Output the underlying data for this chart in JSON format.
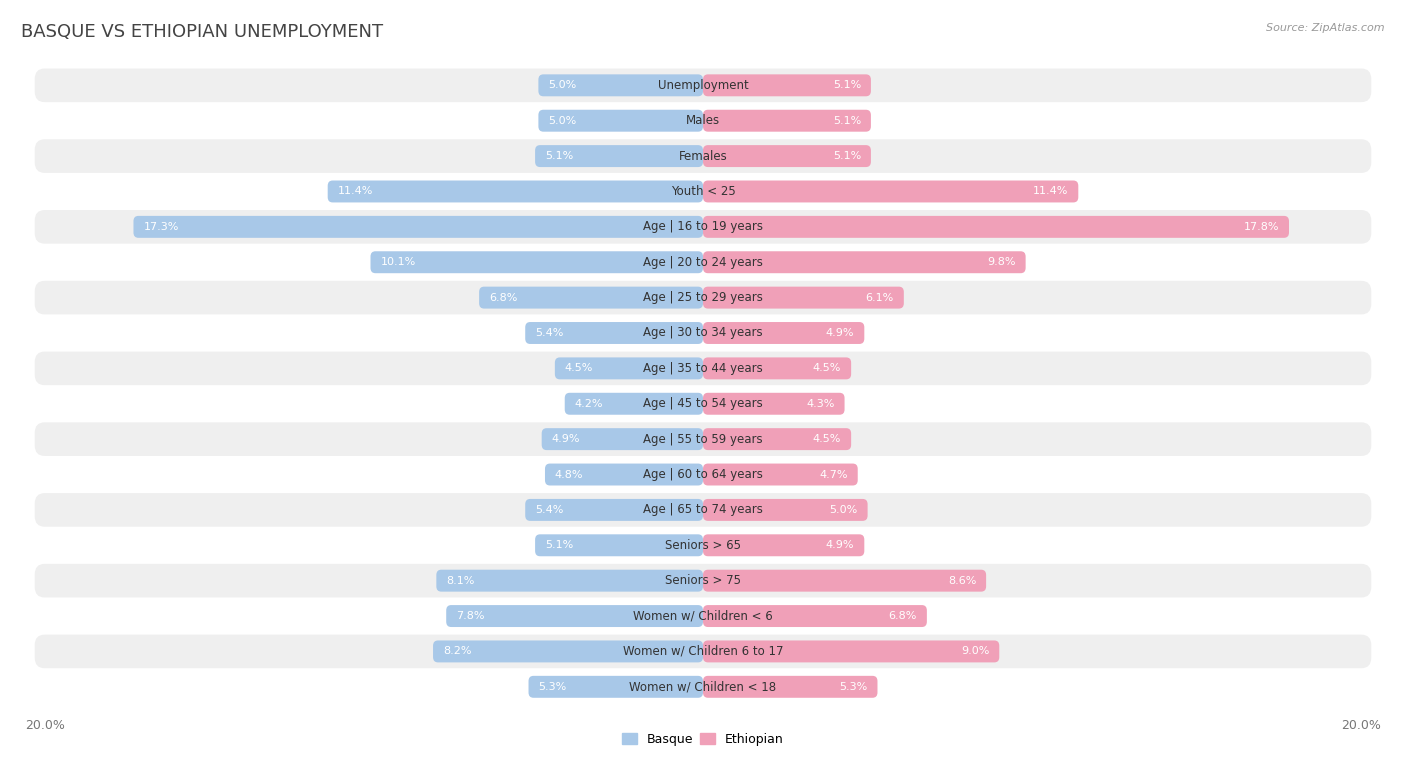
{
  "title": "BASQUE VS ETHIOPIAN UNEMPLOYMENT",
  "source": "Source: ZipAtlas.com",
  "background_color": "#ffffff",
  "basque_color": "#a8c8e8",
  "ethiopian_color": "#f0a0b8",
  "row_color_even": "#efefef",
  "row_color_odd": "#ffffff",
  "categories": [
    "Unemployment",
    "Males",
    "Females",
    "Youth < 25",
    "Age | 16 to 19 years",
    "Age | 20 to 24 years",
    "Age | 25 to 29 years",
    "Age | 30 to 34 years",
    "Age | 35 to 44 years",
    "Age | 45 to 54 years",
    "Age | 55 to 59 years",
    "Age | 60 to 64 years",
    "Age | 65 to 74 years",
    "Seniors > 65",
    "Seniors > 75",
    "Women w/ Children < 6",
    "Women w/ Children 6 to 17",
    "Women w/ Children < 18"
  ],
  "basque_values": [
    5.0,
    5.0,
    5.1,
    11.4,
    17.3,
    10.1,
    6.8,
    5.4,
    4.5,
    4.2,
    4.9,
    4.8,
    5.4,
    5.1,
    8.1,
    7.8,
    8.2,
    5.3
  ],
  "ethiopian_values": [
    5.1,
    5.1,
    5.1,
    11.4,
    17.8,
    9.8,
    6.1,
    4.9,
    4.5,
    4.3,
    4.5,
    4.7,
    5.0,
    4.9,
    8.6,
    6.8,
    9.0,
    5.3
  ],
  "x_max": 20.0,
  "legend_basque": "Basque",
  "legend_ethiopian": "Ethiopian"
}
